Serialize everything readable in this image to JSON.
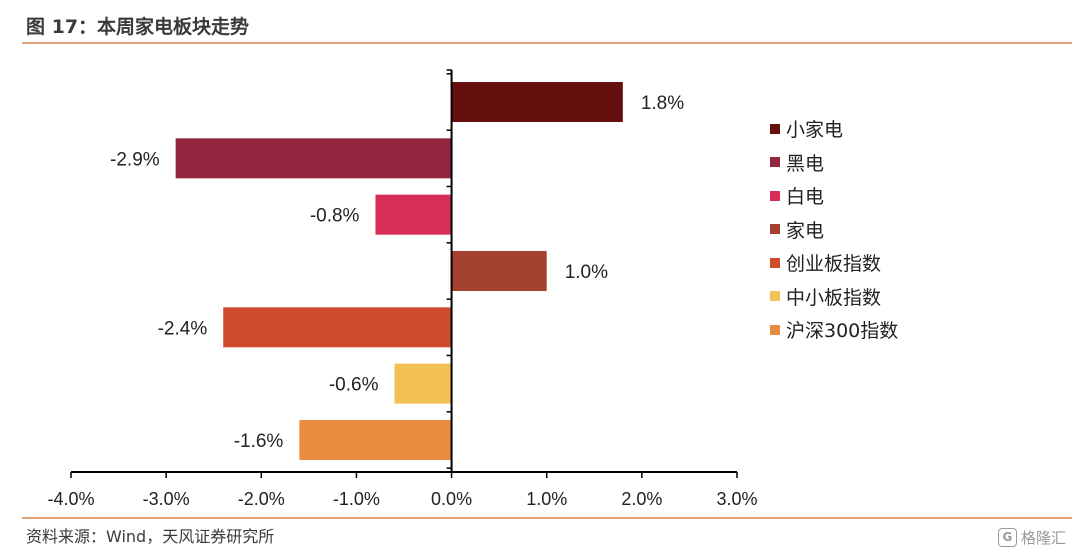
{
  "figure": {
    "title": "图 17：本周家电板块走势",
    "source": "资料来源：Wind，天风证券研究所",
    "watermark": "格隆汇",
    "accent_color": "#e8a07a"
  },
  "chart_data": {
    "type": "bar",
    "orientation": "horizontal",
    "categories": [
      "小家电",
      "黑电",
      "白电",
      "家电",
      "创业板指数",
      "中小板指数",
      "沪深300指数"
    ],
    "values": [
      1.8,
      -2.9,
      -0.8,
      1.0,
      -2.4,
      -0.6,
      -1.6
    ],
    "data_labels": [
      "1.8%",
      "-2.9%",
      "-0.8%",
      "1.0%",
      "-2.4%",
      "-0.6%",
      "-1.6%"
    ],
    "colors": [
      "#65100f",
      "#93263e",
      "#d82d55",
      "#a54130",
      "#cf4b2c",
      "#f2c154",
      "#e98c3f"
    ],
    "xlim": [
      -4.0,
      3.0
    ],
    "xticks": [
      -4.0,
      -3.0,
      -2.0,
      -1.0,
      0.0,
      1.0,
      2.0,
      3.0
    ],
    "xtick_labels": [
      "-4.0%",
      "-3.0%",
      "-2.0%",
      "-1.0%",
      "0.0%",
      "1.0%",
      "2.0%",
      "3.0%"
    ],
    "grid": false,
    "legend_position": "right"
  }
}
